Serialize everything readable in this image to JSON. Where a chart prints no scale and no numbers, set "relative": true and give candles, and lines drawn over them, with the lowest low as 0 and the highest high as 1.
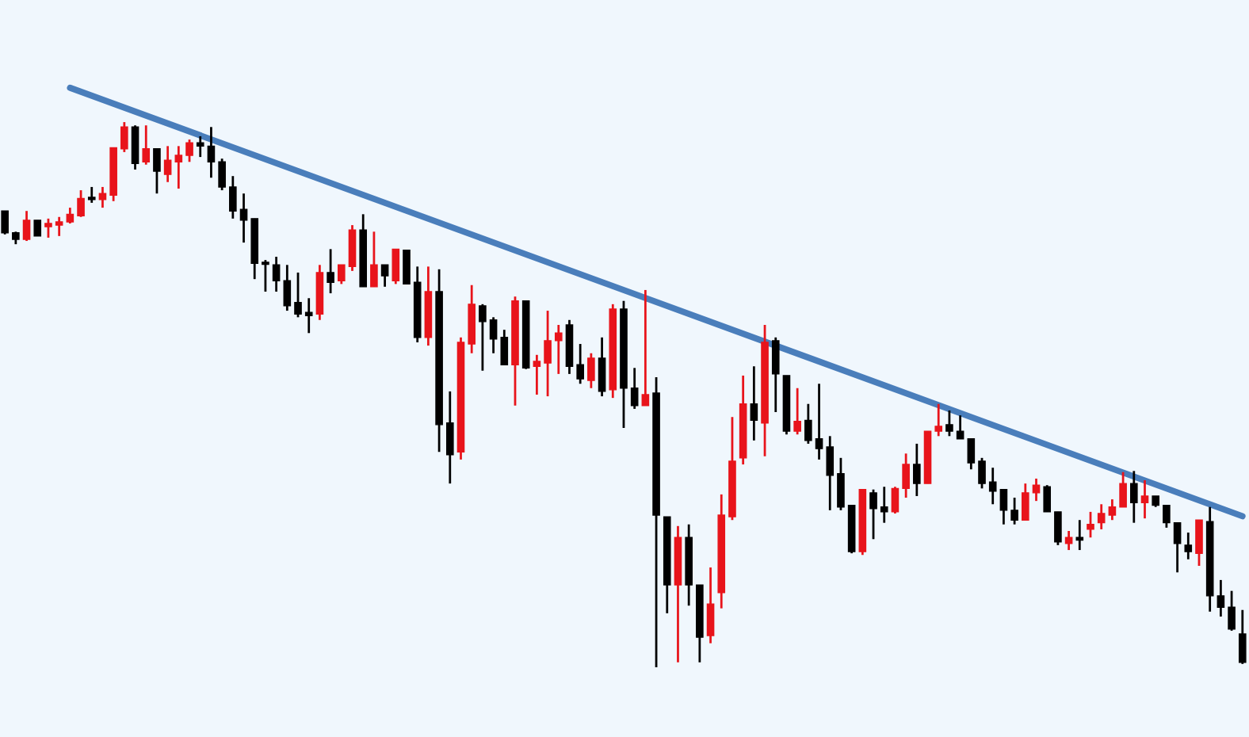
{
  "chart_data": {
    "type": "candlestick",
    "relative": true,
    "categories": [
      null,
      null,
      null,
      null,
      null,
      null,
      null,
      null,
      null,
      null,
      null,
      null,
      null,
      null,
      null,
      null,
      null,
      null,
      null,
      null,
      null,
      null,
      null,
      null,
      null,
      null,
      null,
      null,
      null,
      null,
      null,
      null,
      null,
      null,
      null,
      null,
      null,
      null,
      null,
      null,
      null,
      null,
      null,
      null,
      null,
      null,
      null,
      null,
      null,
      null,
      null,
      null,
      null,
      null,
      null,
      null,
      null,
      null,
      null,
      null,
      null,
      null,
      null,
      null,
      null,
      null,
      null,
      null,
      null,
      null,
      null,
      null,
      null,
      null,
      null,
      null,
      null,
      null,
      null,
      null,
      null,
      null,
      null,
      null,
      null,
      null,
      null,
      null,
      null,
      null,
      null,
      null,
      null,
      null,
      null,
      null,
      null,
      null,
      null,
      null,
      null,
      null,
      null,
      null,
      null,
      null,
      null,
      null,
      null,
      null,
      null,
      null,
      null,
      null,
      null
    ],
    "ohlc": [
      [
        0.837,
        0.837,
        0.794,
        0.797
      ],
      [
        0.797,
        0.799,
        0.776,
        0.785
      ],
      [
        0.785,
        0.837,
        0.782,
        0.82
      ],
      [
        0.82,
        0.82,
        0.791,
        0.791
      ],
      [
        0.808,
        0.823,
        0.788,
        0.814
      ],
      [
        0.811,
        0.826,
        0.791,
        0.817
      ],
      [
        0.817,
        0.843,
        0.814,
        0.831
      ],
      [
        0.828,
        0.875,
        0.826,
        0.86
      ],
      [
        0.863,
        0.881,
        0.852,
        0.86
      ],
      [
        0.858,
        0.881,
        0.843,
        0.869
      ],
      [
        0.866,
        0.953,
        0.855,
        0.953
      ],
      [
        0.951,
        1.0,
        0.945,
        0.991
      ],
      [
        0.991,
        0.994,
        0.913,
        0.924
      ],
      [
        0.927,
        0.994,
        0.922,
        0.951
      ],
      [
        0.951,
        0.951,
        0.869,
        0.91
      ],
      [
        0.904,
        0.956,
        0.89,
        0.93
      ],
      [
        0.927,
        0.956,
        0.878,
        0.939
      ],
      [
        0.939,
        0.968,
        0.927,
        0.962
      ],
      [
        0.962,
        0.974,
        0.936,
        0.956
      ],
      [
        0.956,
        0.991,
        0.898,
        0.927
      ],
      [
        0.927,
        0.933,
        0.875,
        0.881
      ],
      [
        0.881,
        0.901,
        0.823,
        0.837
      ],
      [
        0.84,
        0.869,
        0.779,
        0.82
      ],
      [
        0.823,
        0.823,
        0.712,
        0.741
      ],
      [
        0.744,
        0.747,
        0.689,
        0.741
      ],
      [
        0.738,
        0.753,
        0.689,
        0.709
      ],
      [
        0.709,
        0.738,
        0.654,
        0.663
      ],
      [
        0.669,
        0.724,
        0.642,
        0.648
      ],
      [
        0.651,
        0.677,
        0.613,
        0.645
      ],
      [
        0.648,
        0.738,
        0.637,
        0.724
      ],
      [
        0.724,
        0.767,
        0.686,
        0.706
      ],
      [
        0.709,
        0.738,
        0.703,
        0.738
      ],
      [
        0.735,
        0.811,
        0.727,
        0.802
      ],
      [
        0.802,
        0.831,
        0.698,
        0.698
      ],
      [
        0.698,
        0.799,
        0.698,
        0.738
      ],
      [
        0.738,
        0.738,
        0.698,
        0.718
      ],
      [
        0.709,
        0.767,
        0.703,
        0.767
      ],
      [
        0.765,
        0.765,
        0.703,
        0.703
      ],
      [
        0.706,
        0.735,
        0.596,
        0.605
      ],
      [
        0.605,
        0.735,
        0.59,
        0.689
      ],
      [
        0.689,
        0.73,
        0.395,
        0.445
      ],
      [
        0.448,
        0.506,
        0.337,
        0.39
      ],
      [
        0.395,
        0.605,
        0.381,
        0.596
      ],
      [
        0.593,
        0.701,
        0.576,
        0.666
      ],
      [
        0.663,
        0.666,
        0.544,
        0.634
      ],
      [
        0.637,
        0.642,
        0.576,
        0.602
      ],
      [
        0.605,
        0.619,
        0.555,
        0.555
      ],
      [
        0.555,
        0.68,
        0.48,
        0.672
      ],
      [
        0.672,
        0.672,
        0.547,
        0.549
      ],
      [
        0.552,
        0.573,
        0.5,
        0.561
      ],
      [
        0.558,
        0.654,
        0.497,
        0.599
      ],
      [
        0.599,
        0.628,
        0.538,
        0.613
      ],
      [
        0.628,
        0.637,
        0.538,
        0.552
      ],
      [
        0.555,
        0.593,
        0.52,
        0.529
      ],
      [
        0.526,
        0.576,
        0.512,
        0.567
      ],
      [
        0.567,
        0.605,
        0.497,
        0.506
      ],
      [
        0.509,
        0.666,
        0.494,
        0.657
      ],
      [
        0.657,
        0.672,
        0.439,
        0.512
      ],
      [
        0.512,
        0.549,
        0.474,
        0.48
      ],
      [
        0.48,
        0.692,
        0.48,
        0.5
      ],
      [
        0.503,
        0.532,
        0.0,
        0.279
      ],
      [
        0.276,
        0.276,
        0.099,
        0.151
      ],
      [
        0.151,
        0.259,
        0.009,
        0.238
      ],
      [
        0.238,
        0.262,
        0.113,
        0.151
      ],
      [
        0.151,
        0.151,
        0.009,
        0.055
      ],
      [
        0.058,
        0.183,
        0.044,
        0.116
      ],
      [
        0.137,
        0.317,
        0.108,
        0.279
      ],
      [
        0.276,
        0.459,
        0.27,
        0.378
      ],
      [
        0.384,
        0.535,
        0.372,
        0.483
      ],
      [
        0.483,
        0.552,
        0.416,
        0.453
      ],
      [
        0.448,
        0.628,
        0.387,
        0.596
      ],
      [
        0.599,
        0.605,
        0.468,
        0.538
      ],
      [
        0.535,
        0.535,
        0.427,
        0.433
      ],
      [
        0.433,
        0.512,
        0.427,
        0.451
      ],
      [
        0.453,
        0.483,
        0.41,
        0.416
      ],
      [
        0.419,
        0.52,
        0.381,
        0.401
      ],
      [
        0.404,
        0.424,
        0.288,
        0.352
      ],
      [
        0.355,
        0.384,
        0.288,
        0.294
      ],
      [
        0.297,
        0.297,
        0.209,
        0.212
      ],
      [
        0.212,
        0.326,
        0.206,
        0.326
      ],
      [
        0.32,
        0.326,
        0.235,
        0.291
      ],
      [
        0.294,
        0.331,
        0.265,
        0.285
      ],
      [
        0.285,
        0.331,
        0.282,
        0.328
      ],
      [
        0.328,
        0.392,
        0.311,
        0.372
      ],
      [
        0.372,
        0.41,
        0.314,
        0.337
      ],
      [
        0.337,
        0.433,
        0.337,
        0.433
      ],
      [
        0.433,
        0.483,
        0.424,
        0.442
      ],
      [
        0.445,
        0.471,
        0.424,
        0.433
      ],
      [
        0.433,
        0.462,
        0.419,
        0.419
      ],
      [
        0.419,
        0.419,
        0.363,
        0.375
      ],
      [
        0.378,
        0.384,
        0.328,
        0.337
      ],
      [
        0.34,
        0.366,
        0.299,
        0.323
      ],
      [
        0.326,
        0.326,
        0.262,
        0.288
      ],
      [
        0.288,
        0.311,
        0.262,
        0.27
      ],
      [
        0.27,
        0.337,
        0.27,
        0.32
      ],
      [
        0.32,
        0.346,
        0.305,
        0.334
      ],
      [
        0.331,
        0.334,
        0.285,
        0.285
      ],
      [
        0.285,
        0.285,
        0.224,
        0.23
      ],
      [
        0.227,
        0.25,
        0.215,
        0.238
      ],
      [
        0.238,
        0.27,
        0.215,
        0.233
      ],
      [
        0.253,
        0.285,
        0.238,
        0.262
      ],
      [
        0.265,
        0.299,
        0.253,
        0.282
      ],
      [
        0.279,
        0.308,
        0.27,
        0.294
      ],
      [
        0.294,
        0.358,
        0.294,
        0.337
      ],
      [
        0.337,
        0.36,
        0.265,
        0.302
      ],
      [
        0.302,
        0.343,
        0.273,
        0.314
      ],
      [
        0.314,
        0.314,
        0.294,
        0.297
      ],
      [
        0.297,
        0.297,
        0.256,
        0.265
      ],
      [
        0.265,
        0.265,
        0.174,
        0.227
      ],
      [
        0.224,
        0.247,
        0.198,
        0.212
      ],
      [
        0.209,
        0.27,
        0.186,
        0.27
      ],
      [
        0.267,
        0.294,
        0.102,
        0.131
      ],
      [
        0.131,
        0.16,
        0.093,
        0.11
      ],
      [
        0.11,
        0.14,
        0.067,
        0.07
      ],
      [
        0.061,
        0.105,
        0.006,
        0.009
      ]
    ],
    "colors": [
      "#000000",
      "#000000",
      "#e8141b",
      "#000000",
      "#e8141b",
      "#e8141b",
      "#e8141b",
      "#e8141b",
      "#000000",
      "#e8141b",
      "#e8141b",
      "#e8141b",
      "#000000",
      "#e8141b",
      "#000000",
      "#e8141b",
      "#e8141b",
      "#e8141b",
      "#000000",
      "#000000",
      "#000000",
      "#000000",
      "#000000",
      "#000000",
      "#000000",
      "#000000",
      "#000000",
      "#000000",
      "#000000",
      "#e8141b",
      "#000000",
      "#e8141b",
      "#e8141b",
      "#000000",
      "#e8141b",
      "#000000",
      "#e8141b",
      "#000000",
      "#000000",
      "#e8141b",
      "#000000",
      "#000000",
      "#e8141b",
      "#e8141b",
      "#000000",
      "#000000",
      "#000000",
      "#e8141b",
      "#000000",
      "#e8141b",
      "#e8141b",
      "#e8141b",
      "#000000",
      "#000000",
      "#e8141b",
      "#000000",
      "#e8141b",
      "#000000",
      "#000000",
      "#e8141b",
      "#000000",
      "#000000",
      "#e8141b",
      "#000000",
      "#000000",
      "#e8141b",
      "#e8141b",
      "#e8141b",
      "#e8141b",
      "#000000",
      "#e8141b",
      "#000000",
      "#000000",
      "#e8141b",
      "#000000",
      "#000000",
      "#000000",
      "#000000",
      "#000000",
      "#e8141b",
      "#000000",
      "#000000",
      "#e8141b",
      "#e8141b",
      "#000000",
      "#e8141b",
      "#e8141b",
      "#000000",
      "#000000",
      "#000000",
      "#000000",
      "#000000",
      "#000000",
      "#000000",
      "#e8141b",
      "#e8141b",
      "#000000",
      "#000000",
      "#e8141b",
      "#000000",
      "#e8141b",
      "#e8141b",
      "#e8141b",
      "#e8141b",
      "#000000",
      "#e8141b",
      "#000000",
      "#000000",
      "#000000",
      "#000000",
      "#e8141b",
      "#000000",
      "#000000",
      "#000000",
      "#000000"
    ],
    "series": [
      {
        "type": "line",
        "values": [
          null,
          null,
          null,
          null,
          null,
          null,
          1.063,
          null,
          null,
          null,
          null,
          null,
          null,
          null,
          null,
          null,
          null,
          null,
          null,
          null,
          null,
          null,
          null,
          null,
          null,
          null,
          null,
          null,
          null,
          null,
          null,
          null,
          null,
          null,
          null,
          null,
          null,
          null,
          null,
          null,
          null,
          null,
          null,
          null,
          null,
          null,
          null,
          null,
          null,
          null,
          null,
          null,
          null,
          null,
          null,
          null,
          null,
          null,
          null,
          null,
          null,
          null,
          null,
          null,
          null,
          null,
          null,
          null,
          null,
          null,
          null,
          null,
          null,
          null,
          null,
          null,
          null,
          null,
          null,
          null,
          null,
          null,
          null,
          null,
          null,
          null,
          null,
          null,
          null,
          null,
          null,
          null,
          null,
          null,
          null,
          null,
          null,
          null,
          null,
          null,
          null,
          null,
          null,
          null,
          null,
          null,
          null,
          null,
          null,
          null,
          null,
          null,
          null,
          null,
          0.277
        ],
        "color": "#4a7ebb"
      }
    ]
  }
}
